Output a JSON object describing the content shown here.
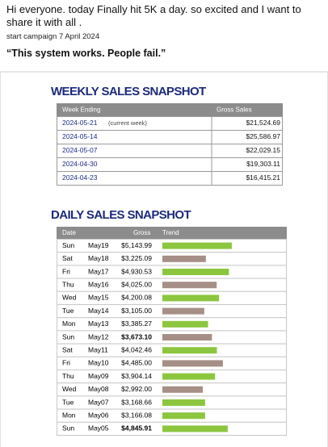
{
  "post": {
    "text": "Hi everyone. today Finally hit 5K a day. so excited and I want to share it with all .",
    "campaign": "start campaign 7 April 2024",
    "quote": "“This system works. People fail.”"
  },
  "weekly": {
    "title": "WEEKLY SALES SNAPSHOT",
    "header": [
      "Week Ending",
      "Gross Sales"
    ],
    "rows": [
      {
        "week": "2024-05-21",
        "note": "(current week)",
        "gross": "$21,524.69"
      },
      {
        "week": "2024-05-14",
        "gross": "$25,586.97"
      },
      {
        "week": "2024-05-07",
        "gross": "$22,029.15"
      },
      {
        "week": "2024-04-30",
        "gross": "$19,303.11"
      },
      {
        "week": "2024-04-23",
        "gross": "$16,415.21"
      }
    ]
  },
  "daily": {
    "title": "DAILY SALES SNAPSHOT",
    "header": [
      "Date",
      "Gross",
      "Trend"
    ],
    "rows": [
      {
        "day": "Sun",
        "date": "May19",
        "gross": {
          "value": 5143.99,
          "label": "$5,143.99"
        },
        "color": "#8cc63f"
      },
      {
        "day": "Sat",
        "date": "May18",
        "gross": {
          "value": 3225.09,
          "label": "$3,225.09"
        },
        "color": "#a68f86"
      },
      {
        "day": "Fri",
        "date": "May17",
        "gross": {
          "value": 4930.53,
          "label": "$4,930.53"
        },
        "color": "#8cc63f"
      },
      {
        "day": "Thu",
        "date": "May16",
        "gross": {
          "value": 4025.0,
          "label": "$4,025.00"
        },
        "color": "#a68f86"
      },
      {
        "day": "Wed",
        "date": "May15",
        "gross": {
          "value": 4200.08,
          "label": "$4,200.08"
        },
        "color": "#8cc63f"
      },
      {
        "day": "Tue",
        "date": "May14",
        "gross": {
          "value": 3105.0,
          "label": "$3,105.00"
        },
        "color": "#a68f86"
      },
      {
        "day": "Mon",
        "date": "May13",
        "gross": {
          "value": 3385.27,
          "label": "$3,385.27"
        },
        "color": "#8cc63f"
      },
      {
        "day": "Sun",
        "date": "May12",
        "gross": {
          "value": 3673.1,
          "label": "$3,673.10"
        },
        "color": "#a68f86",
        "bold": true
      },
      {
        "day": "Sat",
        "date": "May11",
        "gross": {
          "value": 4042.46,
          "label": "$4,042.46"
        },
        "color": "#8cc63f"
      },
      {
        "day": "Fri",
        "date": "May10",
        "gross": {
          "value": 4485.0,
          "label": "$4,485.00"
        },
        "color": "#a68f86"
      },
      {
        "day": "Thu",
        "date": "May09",
        "gross": {
          "value": 3904.14,
          "label": "$3,904.14"
        },
        "color": "#8cc63f"
      },
      {
        "day": "Wed",
        "date": "May08",
        "gross": {
          "value": 2992.0,
          "label": "$2,992.00"
        },
        "color": "#a68f86"
      },
      {
        "day": "Tue",
        "date": "May07",
        "gross": {
          "value": 3168.66,
          "label": "$3,168.66"
        },
        "color": "#8cc63f"
      },
      {
        "day": "Mon",
        "date": "May06",
        "gross": {
          "value": 3166.08,
          "label": "$3,166.08"
        },
        "color": "#8cc63f"
      },
      {
        "day": "Sun",
        "date": "May05",
        "gross": {
          "value": 4845.91,
          "label": "$4,845.91"
        },
        "color": "#8cc63f",
        "bold": true
      }
    ]
  }
}
